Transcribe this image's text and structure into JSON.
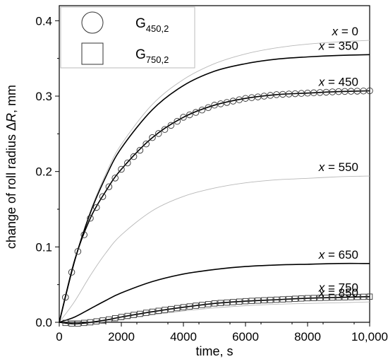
{
  "chart_data": {
    "type": "line",
    "xlabel": "time, s",
    "ylabel": "change of roll radius ΔR, mm",
    "ylabel_parts": {
      "pre": "change of roll radius Δ",
      "italic": "R",
      "post": ", mm"
    },
    "xlim": [
      0,
      10000
    ],
    "ylim": [
      0,
      0.42
    ],
    "x_ticks": [
      0,
      2000,
      4000,
      6000,
      8000,
      10000
    ],
    "x_tick_labels": [
      "0",
      "2000",
      "4000",
      "6000",
      "8000",
      "10,000"
    ],
    "y_ticks": [
      0.0,
      0.1,
      0.2,
      0.3,
      0.4
    ],
    "y_tick_labels": [
      "0.0",
      "0.1",
      "0.2",
      "0.3",
      "0.4"
    ],
    "grid": false,
    "legend_position": "top-left",
    "legend": [
      {
        "marker": "circle",
        "label": "G",
        "subscript": "450,2"
      },
      {
        "marker": "square",
        "label": "G",
        "subscript": "750,2"
      }
    ],
    "series": [
      {
        "name": "x = 0",
        "label_italic": "x",
        "label_rest": " = 0",
        "style": "thin",
        "x": [
          0,
          500,
          1000,
          1500,
          2000,
          3000,
          4000,
          5000,
          6000,
          7000,
          8000,
          9000,
          10000
        ],
        "values": [
          0.0,
          0.083,
          0.147,
          0.197,
          0.236,
          0.289,
          0.322,
          0.343,
          0.356,
          0.364,
          0.369,
          0.372,
          0.374
        ]
      },
      {
        "name": "x = 350",
        "label_italic": "x",
        "label_rest": " = 350",
        "style": "bold",
        "x": [
          0,
          500,
          1000,
          1500,
          2000,
          3000,
          4000,
          5000,
          6000,
          7000,
          8000,
          9000,
          10000
        ],
        "values": [
          0.0,
          0.082,
          0.145,
          0.193,
          0.231,
          0.282,
          0.314,
          0.333,
          0.343,
          0.349,
          0.352,
          0.354,
          0.355
        ]
      },
      {
        "name": "x = 450",
        "label_italic": "x",
        "label_rest": " = 450",
        "style": "bold",
        "markers": "circle",
        "x": [
          0,
          500,
          1000,
          1500,
          2000,
          3000,
          4000,
          5000,
          6000,
          7000,
          8000,
          9000,
          10000
        ],
        "values": [
          0.0,
          0.083,
          0.138,
          0.174,
          0.203,
          0.245,
          0.272,
          0.288,
          0.297,
          0.302,
          0.304,
          0.306,
          0.307
        ]
      },
      {
        "name": "x = 550",
        "label_italic": "x",
        "label_rest": " = 550",
        "style": "thin",
        "x": [
          0,
          500,
          1000,
          1500,
          2000,
          3000,
          4000,
          5000,
          6000,
          7000,
          8000,
          9000,
          10000
        ],
        "values": [
          0.0,
          0.028,
          0.062,
          0.092,
          0.116,
          0.148,
          0.167,
          0.178,
          0.185,
          0.189,
          0.191,
          0.193,
          0.194
        ]
      },
      {
        "name": "x = 650",
        "label_italic": "x",
        "label_rest": " = 650",
        "style": "bold",
        "x": [
          0,
          500,
          1000,
          1500,
          2000,
          3000,
          4000,
          5000,
          6000,
          7000,
          8000,
          9000,
          10000
        ],
        "values": [
          0.0,
          0.007,
          0.018,
          0.029,
          0.039,
          0.054,
          0.064,
          0.07,
          0.074,
          0.076,
          0.077,
          0.078,
          0.078
        ]
      },
      {
        "name": "x = 750",
        "label_italic": "x",
        "label_rest": " = 750",
        "style": "bold",
        "markers": "square",
        "x": [
          0,
          500,
          1000,
          1500,
          2000,
          3000,
          4000,
          5000,
          6000,
          7000,
          8000,
          9000,
          10000
        ],
        "values": [
          0.0,
          -0.002,
          0.0,
          0.003,
          0.007,
          0.014,
          0.02,
          0.025,
          0.028,
          0.03,
          0.032,
          0.033,
          0.034
        ]
      },
      {
        "name": "x = 850",
        "label_italic": "x",
        "label_rest": " = 850",
        "style": "thin",
        "x": [
          0,
          500,
          1000,
          1500,
          2000,
          3000,
          4000,
          5000,
          6000,
          7000,
          8000,
          9000,
          10000
        ],
        "values": [
          0.0,
          -0.002,
          -0.001,
          0.001,
          0.004,
          0.01,
          0.015,
          0.019,
          0.022,
          0.024,
          0.025,
          0.026,
          0.027
        ]
      }
    ]
  },
  "colors": {
    "axis": "#000000",
    "bold_line": "#000000",
    "thin_line": "#b8b8b8",
    "marker": "#333333"
  }
}
